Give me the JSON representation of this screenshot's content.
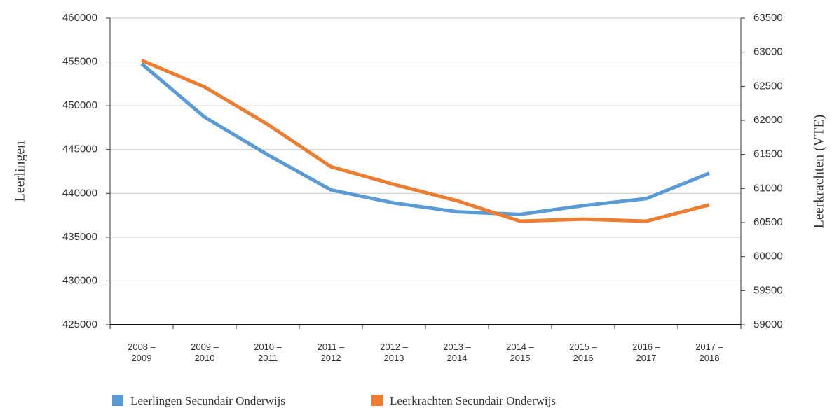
{
  "chart_data": {
    "type": "line",
    "categories": [
      "2008 – 2009",
      "2009 – 2010",
      "2010 – 2011",
      "2011 – 2012",
      "2012 – 2013",
      "2013 – 2014",
      "2014 – 2015",
      "2015 – 2016",
      "2016 – 2017",
      "2017 – 2018"
    ],
    "ylabel": "Leerlingen",
    "y2label": "Leerkrachten (VTE)",
    "ylim": [
      425000,
      460000
    ],
    "yticks": [
      425000,
      430000,
      435000,
      440000,
      445000,
      450000,
      455000,
      460000
    ],
    "y2lim": [
      59000,
      63500
    ],
    "y2ticks": [
      59000,
      59500,
      60000,
      60500,
      61000,
      61500,
      62000,
      62500,
      63000,
      63500
    ],
    "grid": true,
    "legend": "bottom",
    "series": [
      {
        "name": "Leerlingen Secundair Onderwijs",
        "color": "#5b9bd5",
        "values": [
          454800,
          448700,
          444400,
          440400,
          438900,
          437900,
          437600,
          438600,
          439400,
          442300
        ]
      },
      {
        "name": "Leerkrachten Secundair Onderwijs",
        "color": "#ed7d31",
        "axis": "y2",
        "values": [
          62880,
          62490,
          61940,
          61320,
          61060,
          60820,
          60520,
          60550,
          60520,
          60760
        ]
      }
    ]
  }
}
